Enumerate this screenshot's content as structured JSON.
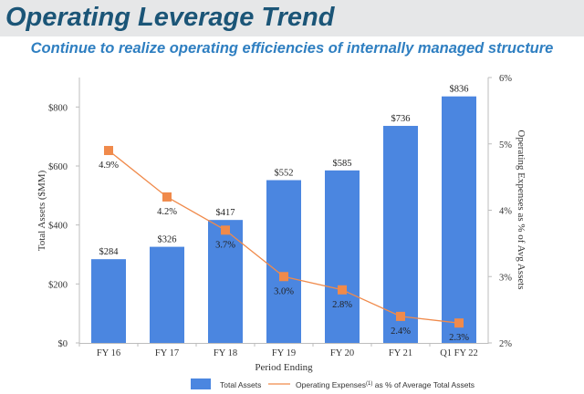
{
  "header": {
    "title": "Operating Leverage Trend",
    "subtitle": "Continue to realize operating efficiencies of internally managed structure"
  },
  "chart_data": {
    "type": "bar",
    "categories": [
      "FY 16",
      "FY 17",
      "FY 18",
      "FY 19",
      "FY 20",
      "FY 21",
      "Q1 FY 22"
    ],
    "series": [
      {
        "name": "Total Assets",
        "type": "bar",
        "axis": "left",
        "values": [
          284,
          326,
          417,
          552,
          585,
          736,
          836
        ],
        "labels": [
          "$284",
          "$326",
          "$417",
          "$552",
          "$585",
          "$736",
          "$836"
        ],
        "color": "#4b86e0"
      },
      {
        "name": "Operating Expenses as % of Average Total Assets",
        "legend_label_main": "Operating Expenses",
        "legend_superscript": "(1)",
        "legend_label_tail": " as % of Average Total Assets",
        "type": "line",
        "axis": "right",
        "values": [
          4.9,
          4.2,
          3.7,
          3.0,
          2.8,
          2.4,
          2.3
        ],
        "labels": [
          "4.9%",
          "4.2%",
          "3.7%",
          "3.0%",
          "2.8%",
          "2.4%",
          "2.3%"
        ],
        "color": "#f08a4b"
      }
    ],
    "xlabel": "Period Ending",
    "ylabel_left": "Total Assets ($MM)",
    "ylabel_right": "Operating Expenses as % of Avg Assets",
    "ylim_left": [
      0,
      900
    ],
    "yticks_left": [
      0,
      200,
      400,
      600,
      800
    ],
    "yticks_left_labels": [
      "$0",
      "$200",
      "$400",
      "$600",
      "$800"
    ],
    "ylim_right": [
      2,
      6
    ],
    "yticks_right": [
      2,
      3,
      4,
      5,
      6
    ],
    "yticks_right_labels": [
      "2%",
      "3%",
      "4%",
      "5%",
      "6%"
    ],
    "legend_position": "bottom",
    "grid": false
  }
}
